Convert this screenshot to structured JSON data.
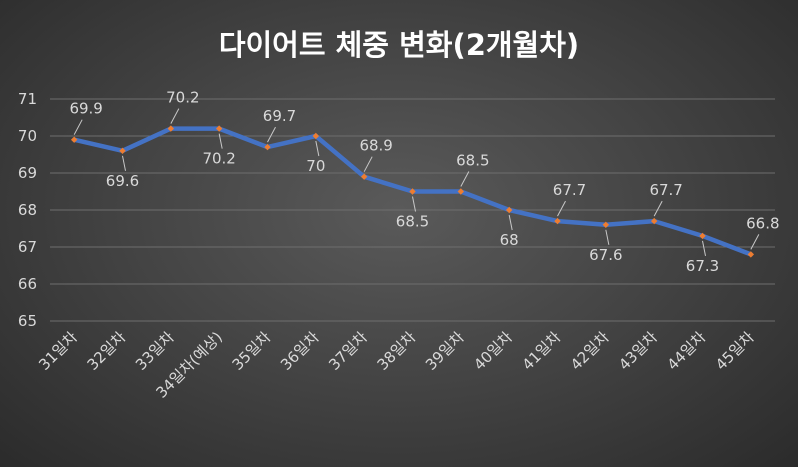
{
  "chart_data": {
    "type": "line",
    "title": "다이어트 체중 변화(2개월차)",
    "categories": [
      "31일차",
      "32일차",
      "33일차",
      "34일차(예상)",
      "35일차",
      "36일차",
      "37일차",
      "38일차",
      "39일차",
      "40일차",
      "41일차",
      "42일차",
      "43일차",
      "44일차",
      "45일차"
    ],
    "series": [
      {
        "values": [
          69.9,
          69.6,
          70.2,
          70.2,
          69.7,
          70,
          68.9,
          68.5,
          68.5,
          68,
          67.7,
          67.6,
          67.7,
          67.3,
          66.8
        ]
      }
    ],
    "data_labels": [
      "69.9",
      "69.6",
      "70.2",
      "70.2",
      "69.7",
      "70",
      "68.9",
      "68.5",
      "68.5",
      "68",
      "67.7",
      "67.6",
      "67.7",
      "67.3",
      "66.8"
    ],
    "label_positions": [
      "above",
      "below",
      "above",
      "below",
      "above",
      "below",
      "above",
      "below",
      "above",
      "below",
      "above",
      "below",
      "above",
      "below",
      "above"
    ],
    "ylim": [
      65,
      71
    ],
    "yticks": [
      "65",
      "66",
      "67",
      "68",
      "69",
      "70",
      "71"
    ],
    "grid": true,
    "legend": "none",
    "colors": {
      "line": "#4472c4",
      "marker": "#ed7d31",
      "background": "#404040"
    }
  }
}
